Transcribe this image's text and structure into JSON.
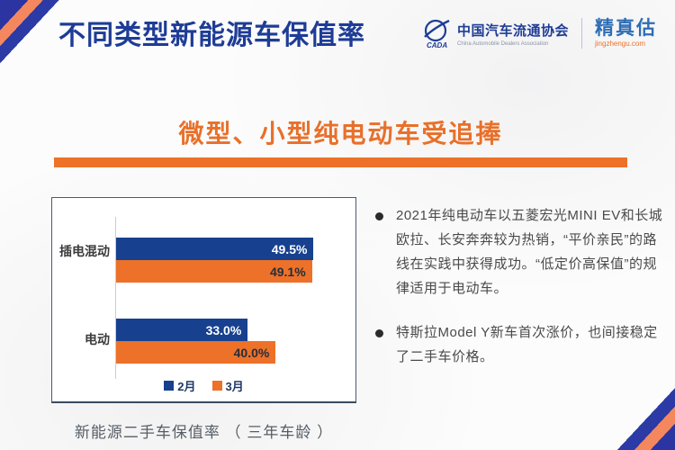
{
  "page": {
    "title": "不同类型新能源车保值率",
    "subtitle": "微型、小型纯电动车受追捧"
  },
  "logo": {
    "org_name": "中国汽车流通协会",
    "org_name_en": "China Automobile Dealers Association",
    "org_abbr": "CADA",
    "brand_name": "精真估",
    "brand_site": "jingzhengu.com"
  },
  "chart_data": {
    "type": "bar",
    "orientation": "horizontal",
    "caption": "新能源二手车保值率 （ 三年车龄 ）",
    "categories": [
      "插电混动",
      "电动"
    ],
    "series": [
      {
        "name": "2月",
        "color": "#17418f",
        "label_color": "#ffffff",
        "values": [
          49.5,
          33.0
        ]
      },
      {
        "name": "3月",
        "color": "#ed7128",
        "label_color": "#262d3a",
        "values": [
          49.1,
          40.0
        ]
      }
    ],
    "value_suffix": "%",
    "xlim": [
      0,
      60
    ],
    "legend_position": "bottom",
    "grid": false
  },
  "insights": {
    "bullets": [
      "2021年纯电动车以五菱宏光MINI EV和长城欧拉、长安奔奔较为热销，“平价亲民”的路线在实践中获得成功。“低定价高保值”的规律适用于电动车。",
      "特斯拉Model Y新车首次涨价，也间接稳定了二手车价格。"
    ]
  },
  "colors": {
    "title_blue": "#1e3c96",
    "accent_orange": "#ed7128",
    "bar_navy": "#17418f",
    "corner_salmon": "#f5875f",
    "corner_blue": "#2b3aa5"
  }
}
